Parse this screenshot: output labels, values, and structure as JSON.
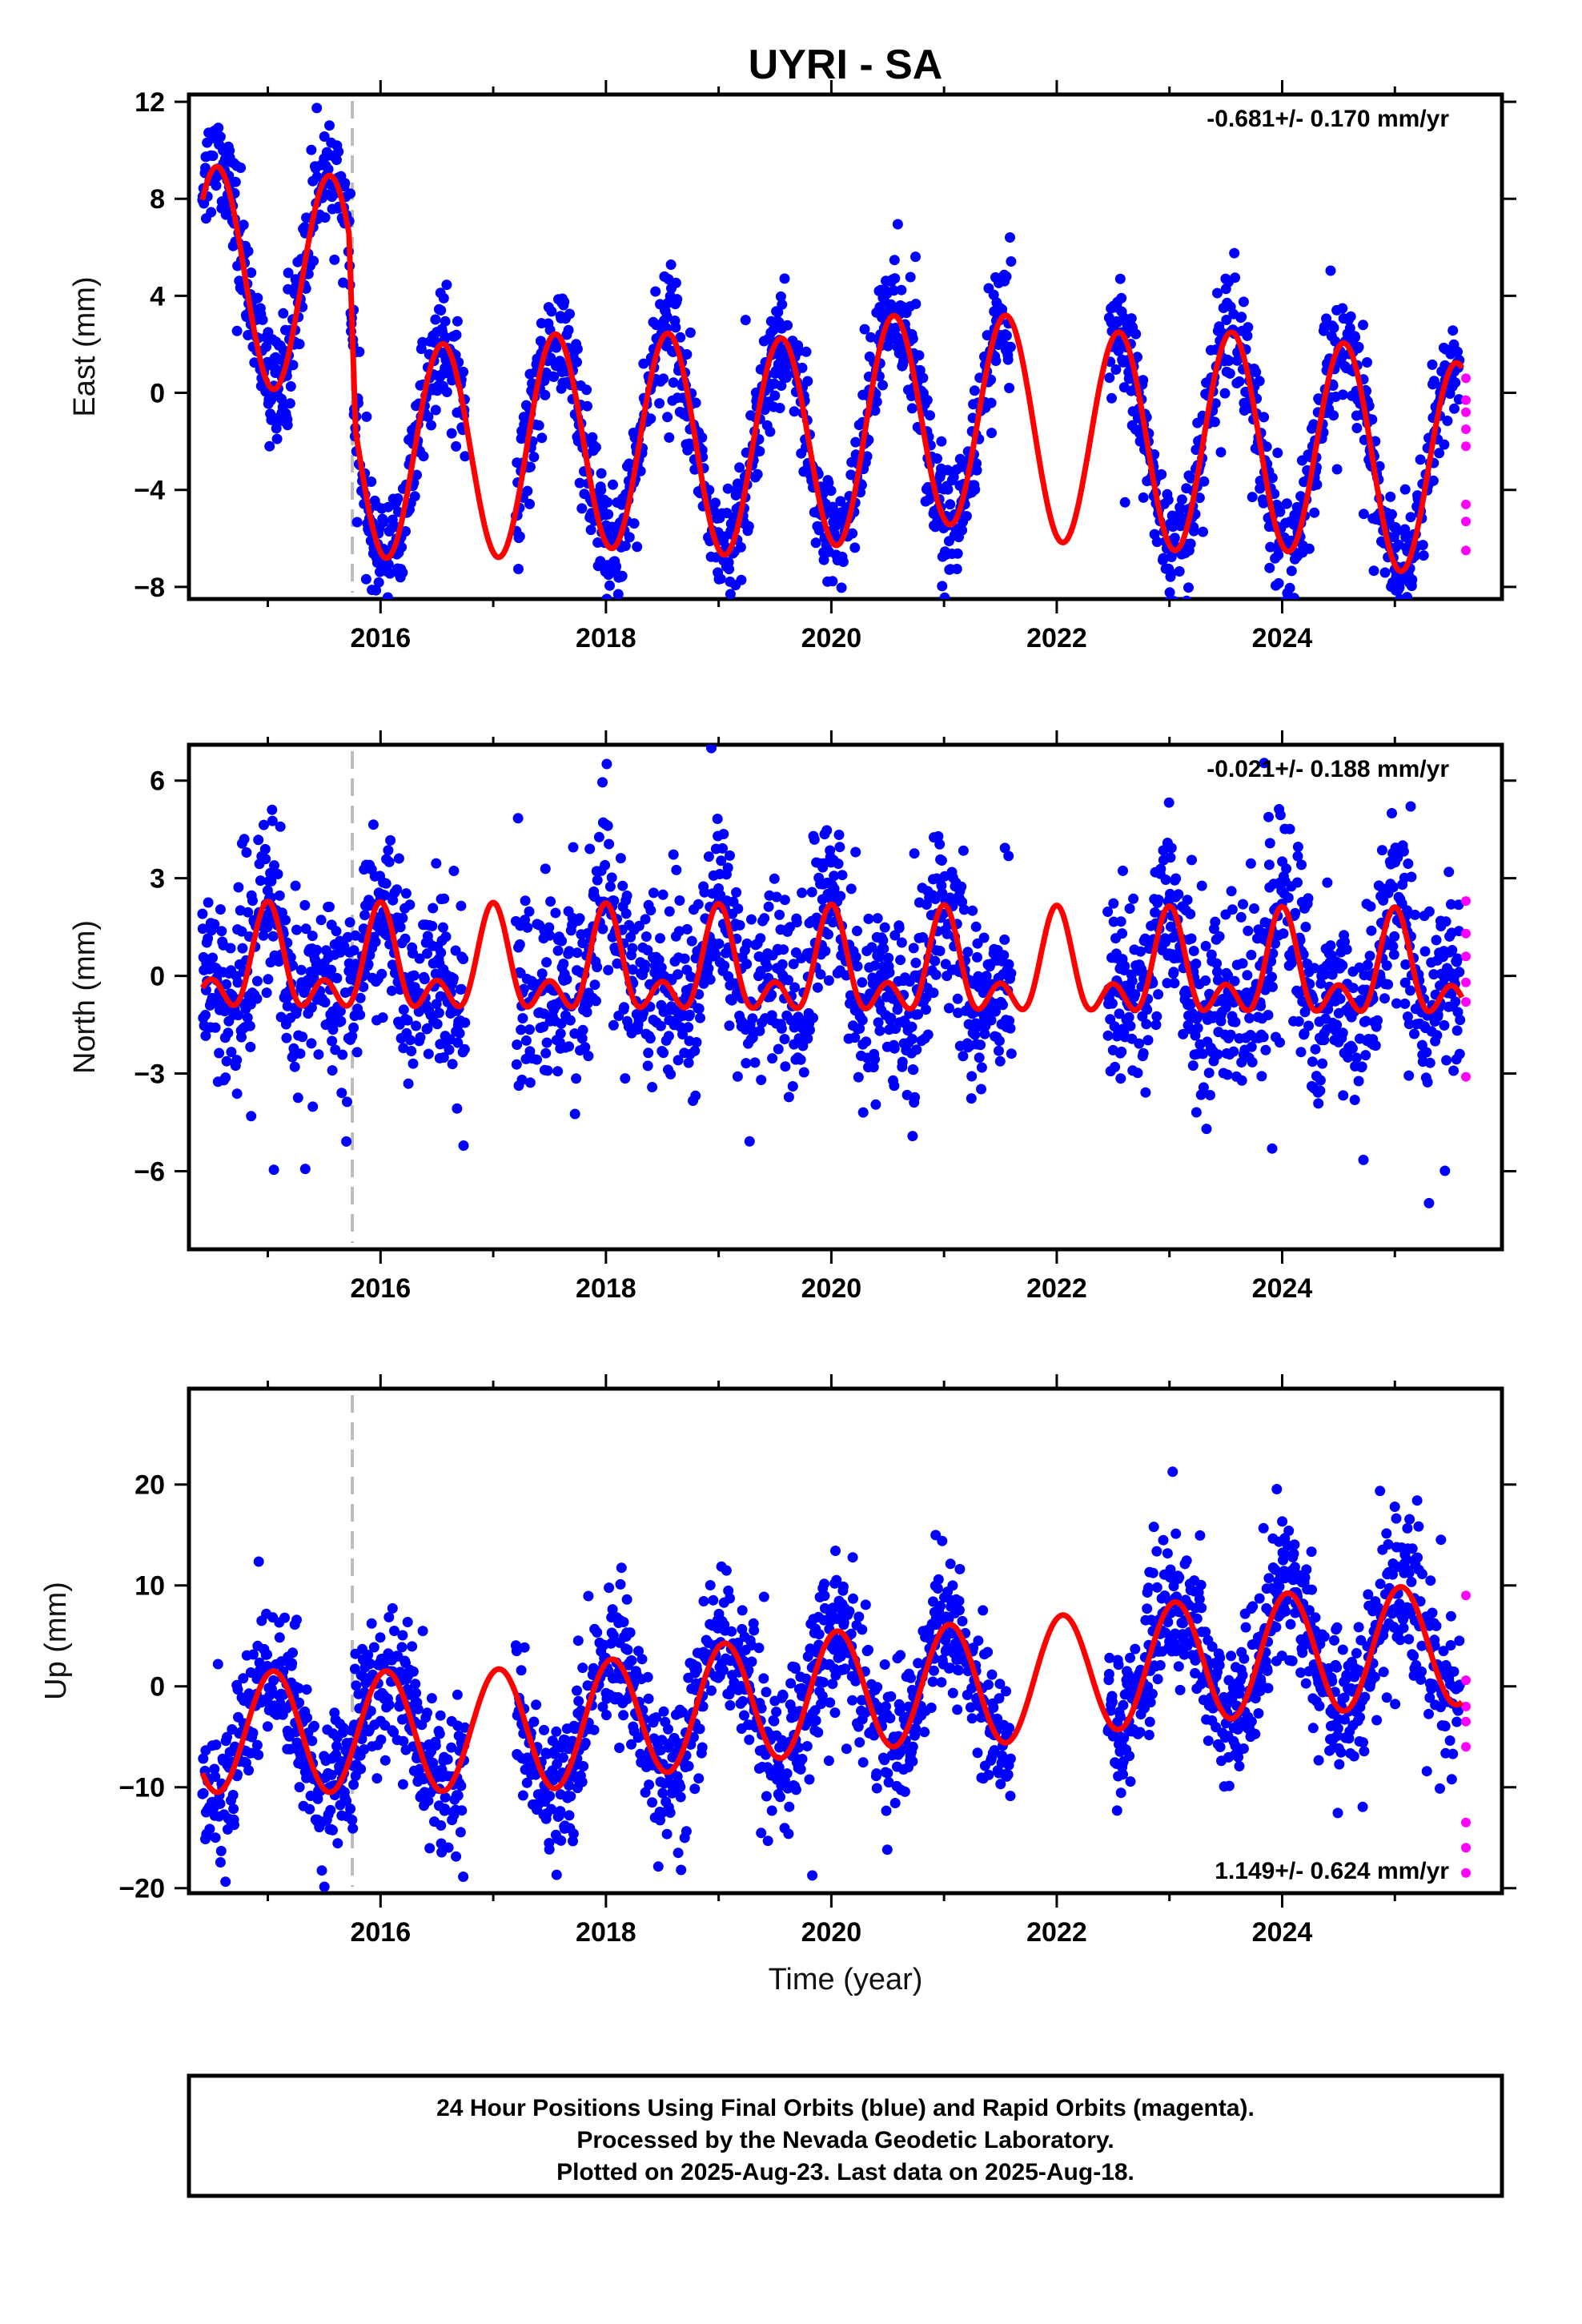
{
  "chart_data": [
    {
      "type": "scatter",
      "title": "UYRI - SA",
      "ylabel": "East (mm)",
      "rate_text": "-0.681+/- 0.170 mm/yr",
      "rate_position": "top-right",
      "xlim": [
        2014.3,
        2025.95
      ],
      "ylim": [
        -8.5,
        12.3
      ],
      "xticks": [
        2016,
        2018,
        2020,
        2022,
        2024
      ],
      "yticks": [
        -8,
        -4,
        0,
        4,
        8,
        12
      ],
      "offset_epoch": 2015.75,
      "annual_amplitude": 4.5,
      "annual_peak": 0.55,
      "semiannual_amplitude": 0,
      "semiannual_peak": 0,
      "noise": 1.2,
      "rapid_values": [
        0.6,
        -0.3,
        -0.8,
        -1.5,
        -2.2,
        -4.6,
        -5.3,
        -6.5
      ],
      "gaps": [
        [
          2016.75,
          2017.2
        ],
        [
          2021.6,
          2022.45
        ]
      ],
      "series": [
        {
          "name": "Final Orbits",
          "color": "#0000ff",
          "role": "points"
        },
        {
          "name": "Rapid Orbits",
          "color": "#ff00ff",
          "role": "points"
        },
        {
          "name": "",
          "color": "#ff0000",
          "role": "model"
        }
      ],
      "trend_knots": [
        [
          2014.35,
          4.9
        ],
        [
          2015.72,
          4.4
        ],
        [
          2015.78,
          -2.2
        ],
        [
          2016.5,
          -2.5
        ],
        [
          2018.0,
          -1.9
        ],
        [
          2019.5,
          -2.3
        ],
        [
          2021.0,
          -0.9
        ],
        [
          2022.5,
          -2.0
        ],
        [
          2024.0,
          -2.0
        ],
        [
          2025.6,
          -3.3
        ]
      ]
    },
    {
      "type": "scatter",
      "title": "",
      "ylabel": "North (mm)",
      "rate_text": "-0.021+/- 0.188 mm/yr",
      "rate_position": "top-right",
      "xlim": [
        2014.3,
        2025.95
      ],
      "ylim": [
        -8.4,
        7.1
      ],
      "xticks": [
        2016,
        2018,
        2020,
        2022,
        2024
      ],
      "yticks": [
        -6,
        -3,
        0,
        3,
        6
      ],
      "offset_epoch": 2015.75,
      "annual_amplitude": 1.2,
      "annual_peak": 0.0,
      "semiannual_amplitude": 0.9,
      "semiannual_peak": 0.0,
      "noise": 1.4,
      "rapid_values": [
        2.3,
        1.3,
        0.6,
        -0.2,
        -0.8,
        -3.1
      ],
      "gaps": [
        [
          2016.75,
          2017.2
        ],
        [
          2021.6,
          2022.45
        ]
      ],
      "series": [
        {
          "name": "Final Orbits",
          "color": "#0000ff",
          "role": "points"
        },
        {
          "name": "Rapid Orbits",
          "color": "#ff00ff",
          "role": "points"
        },
        {
          "name": "",
          "color": "#ff0000",
          "role": "model"
        }
      ],
      "trend_knots": [
        [
          2014.35,
          0.2
        ],
        [
          2025.6,
          0.0
        ]
      ]
    },
    {
      "type": "scatter",
      "title": "",
      "ylabel": "Up (mm)",
      "xlabel": "Time (year)",
      "rate_text": "1.149+/- 0.624 mm/yr",
      "rate_position": "bottom-right",
      "xlim": [
        2014.3,
        2025.95
      ],
      "ylim": [
        -20.5,
        29.5
      ],
      "xticks": [
        2016,
        2018,
        2020,
        2022,
        2024
      ],
      "yticks": [
        -20,
        -10,
        0,
        10,
        20
      ],
      "offset_epoch": 2015.75,
      "annual_amplitude": 6.0,
      "annual_peak": 0.05,
      "semiannual_amplitude": 0,
      "semiannual_peak": 0,
      "noise": 3.6,
      "rapid_values": [
        9.0,
        0.6,
        -2.0,
        -3.5,
        -6.0,
        -13.5,
        -16.0,
        -18.5
      ],
      "gaps": [
        [
          2016.75,
          2017.2
        ],
        [
          2021.6,
          2022.45
        ]
      ],
      "series": [
        {
          "name": "Final Orbits",
          "color": "#0000ff",
          "role": "points"
        },
        {
          "name": "Rapid Orbits",
          "color": "#ff00ff",
          "role": "points"
        },
        {
          "name": "",
          "color": "#ff0000",
          "role": "model"
        }
      ],
      "trend_knots": [
        [
          2014.35,
          -4.5
        ],
        [
          2016.0,
          -4.5
        ],
        [
          2017.5,
          -4.2
        ],
        [
          2019.0,
          -1.8
        ],
        [
          2020.5,
          0.0
        ],
        [
          2021.4,
          0.2
        ],
        [
          2023.0,
          2.3
        ],
        [
          2024.0,
          3.2
        ],
        [
          2025.6,
          4.2
        ]
      ]
    }
  ],
  "footer": {
    "line1": "24 Hour Positions Using Final Orbits (blue) and Rapid Orbits (magenta).",
    "line2": "Processed by the Nevada Geodetic Laboratory.",
    "line3": "Plotted on 2025-Aug-23. Last data on 2025-Aug-18."
  }
}
